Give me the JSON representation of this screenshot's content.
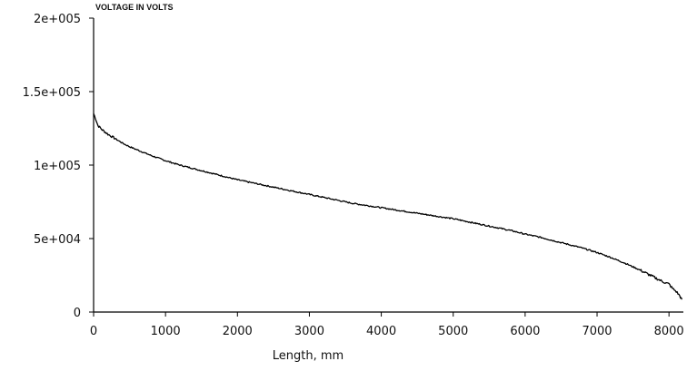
{
  "chart_data": {
    "type": "line",
    "title": "VOLTAGE IN VOLTS",
    "xlabel": "Length, mm",
    "ylabel": "",
    "xlim": [
      0,
      8200
    ],
    "ylim": [
      0,
      200000
    ],
    "x_ticks": [
      {
        "value": 0,
        "label": "0"
      },
      {
        "value": 1000,
        "label": "1000"
      },
      {
        "value": 2000,
        "label": "2000"
      },
      {
        "value": 3000,
        "label": "3000"
      },
      {
        "value": 4000,
        "label": "4000"
      },
      {
        "value": 5000,
        "label": "5000"
      },
      {
        "value": 6000,
        "label": "6000"
      },
      {
        "value": 7000,
        "label": "7000"
      },
      {
        "value": 8000,
        "label": "8000"
      }
    ],
    "y_ticks": [
      {
        "value": 0,
        "label": "0"
      },
      {
        "value": 50000,
        "label": "5e+004"
      },
      {
        "value": 100000,
        "label": "1e+005"
      },
      {
        "value": 150000,
        "label": "1.5e+005"
      },
      {
        "value": 200000,
        "label": "2e+005"
      }
    ],
    "grid": false,
    "series": [
      {
        "color": "#000000",
        "x": [
          0,
          25,
          60,
          120,
          200,
          300,
          400,
          500,
          600,
          800,
          1000,
          1200,
          1400,
          1600,
          1800,
          2000,
          2200,
          2400,
          2600,
          2800,
          3000,
          3200,
          3400,
          3600,
          3800,
          4000,
          4200,
          4400,
          4600,
          4800,
          5000,
          5200,
          5400,
          5600,
          5800,
          6000,
          6200,
          6400,
          6600,
          6800,
          7000,
          7200,
          7400,
          7600,
          7800,
          7900,
          8000,
          8050,
          8100,
          8150,
          8180
        ],
        "y": [
          135000,
          132000,
          127000,
          124000,
          121000,
          118000,
          115000,
          112500,
          110500,
          106500,
          103000,
          100000,
          97500,
          95000,
          92500,
          90000,
          88000,
          86000,
          84000,
          82000,
          80000,
          78000,
          76000,
          74000,
          72500,
          71000,
          69500,
          68000,
          66500,
          65000,
          63500,
          61500,
          59500,
          57500,
          55500,
          53000,
          51000,
          48500,
          46000,
          43500,
          40500,
          37000,
          33000,
          28500,
          23500,
          21000,
          19000,
          16000,
          14000,
          11000,
          8500
        ]
      }
    ]
  }
}
